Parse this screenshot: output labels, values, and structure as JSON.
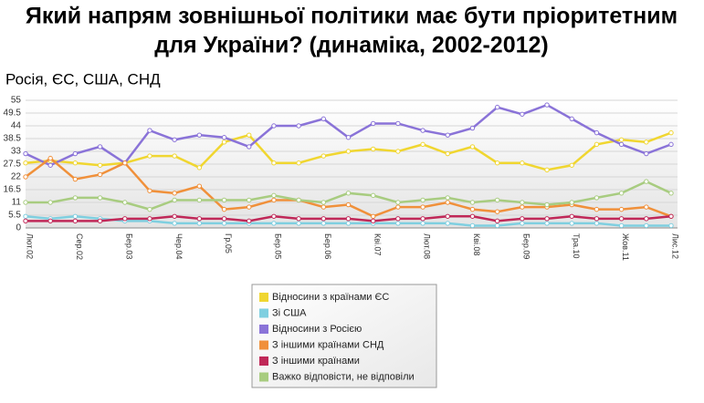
{
  "chart_data": {
    "type": "line",
    "title": "Який напрям зовнішньої політики має бути пріоритетним для України? (динаміка, 2002-2012)",
    "subtitle": "Росія, ЄС, США, СНД",
    "categories": [
      "Лют.02",
      null,
      "Сер.02",
      null,
      "Бер.03",
      null,
      "Чер.04",
      null,
      "Гр.05",
      null,
      "Бер.05",
      null,
      "Бер.06",
      null,
      "Кві.07",
      null,
      "Лют.08",
      null,
      "Кві.08",
      null,
      "Бер.09",
      null,
      "Тра.10",
      null,
      "Жов.11",
      null,
      "Лис.12"
    ],
    "ylim": [
      0,
      55
    ],
    "yticks": [
      0,
      5.5,
      11,
      16.5,
      22,
      27.5,
      33,
      38.5,
      44,
      49.5,
      55
    ],
    "grid": true,
    "series": [
      {
        "name": "Відносини з країнами ЄС",
        "color": "#f0d630",
        "values": [
          28,
          29,
          28,
          27,
          28,
          31,
          31,
          26,
          37,
          40,
          28,
          28,
          31,
          33,
          34,
          33,
          36,
          32,
          35,
          28,
          28,
          25,
          27,
          36,
          38,
          37,
          41
        ]
      },
      {
        "name": "Зі США",
        "color": "#7fcfe0",
        "values": [
          5,
          4,
          5,
          4,
          3,
          3,
          2,
          2,
          2,
          2,
          2,
          2,
          2,
          2,
          2,
          2,
          2,
          2,
          1,
          1,
          2,
          2,
          2,
          2,
          1,
          1,
          1
        ]
      },
      {
        "name": "Відносини з Росією",
        "color": "#8a73d8",
        "values": [
          32,
          27,
          32,
          35,
          28,
          42,
          38,
          40,
          39,
          35,
          44,
          44,
          47,
          39,
          45,
          45,
          42,
          40,
          43,
          52,
          49,
          53,
          47,
          41,
          36,
          32,
          36
        ]
      },
      {
        "name": "З іншими країнами СНД",
        "color": "#f0903a",
        "values": [
          22,
          30,
          21,
          23,
          28,
          16,
          15,
          18,
          8,
          9,
          12,
          12,
          9,
          10,
          5,
          9,
          9,
          11,
          8,
          7,
          9,
          9,
          10,
          8,
          8,
          9,
          5
        ]
      },
      {
        "name": "З іншими країнами",
        "color": "#c02858",
        "values": [
          3,
          3,
          3,
          3,
          4,
          4,
          5,
          4,
          4,
          3,
          5,
          4,
          4,
          4,
          3,
          4,
          4,
          5,
          5,
          3,
          4,
          4,
          5,
          4,
          4,
          4,
          5
        ]
      },
      {
        "name": "Важко відповісти, не відповіли",
        "color": "#a8cc80",
        "values": [
          11,
          11,
          13,
          13,
          11,
          8,
          12,
          12,
          12,
          12,
          14,
          12,
          11,
          15,
          14,
          11,
          12,
          13,
          11,
          12,
          11,
          10,
          11,
          13,
          15,
          20,
          15
        ]
      }
    ]
  }
}
